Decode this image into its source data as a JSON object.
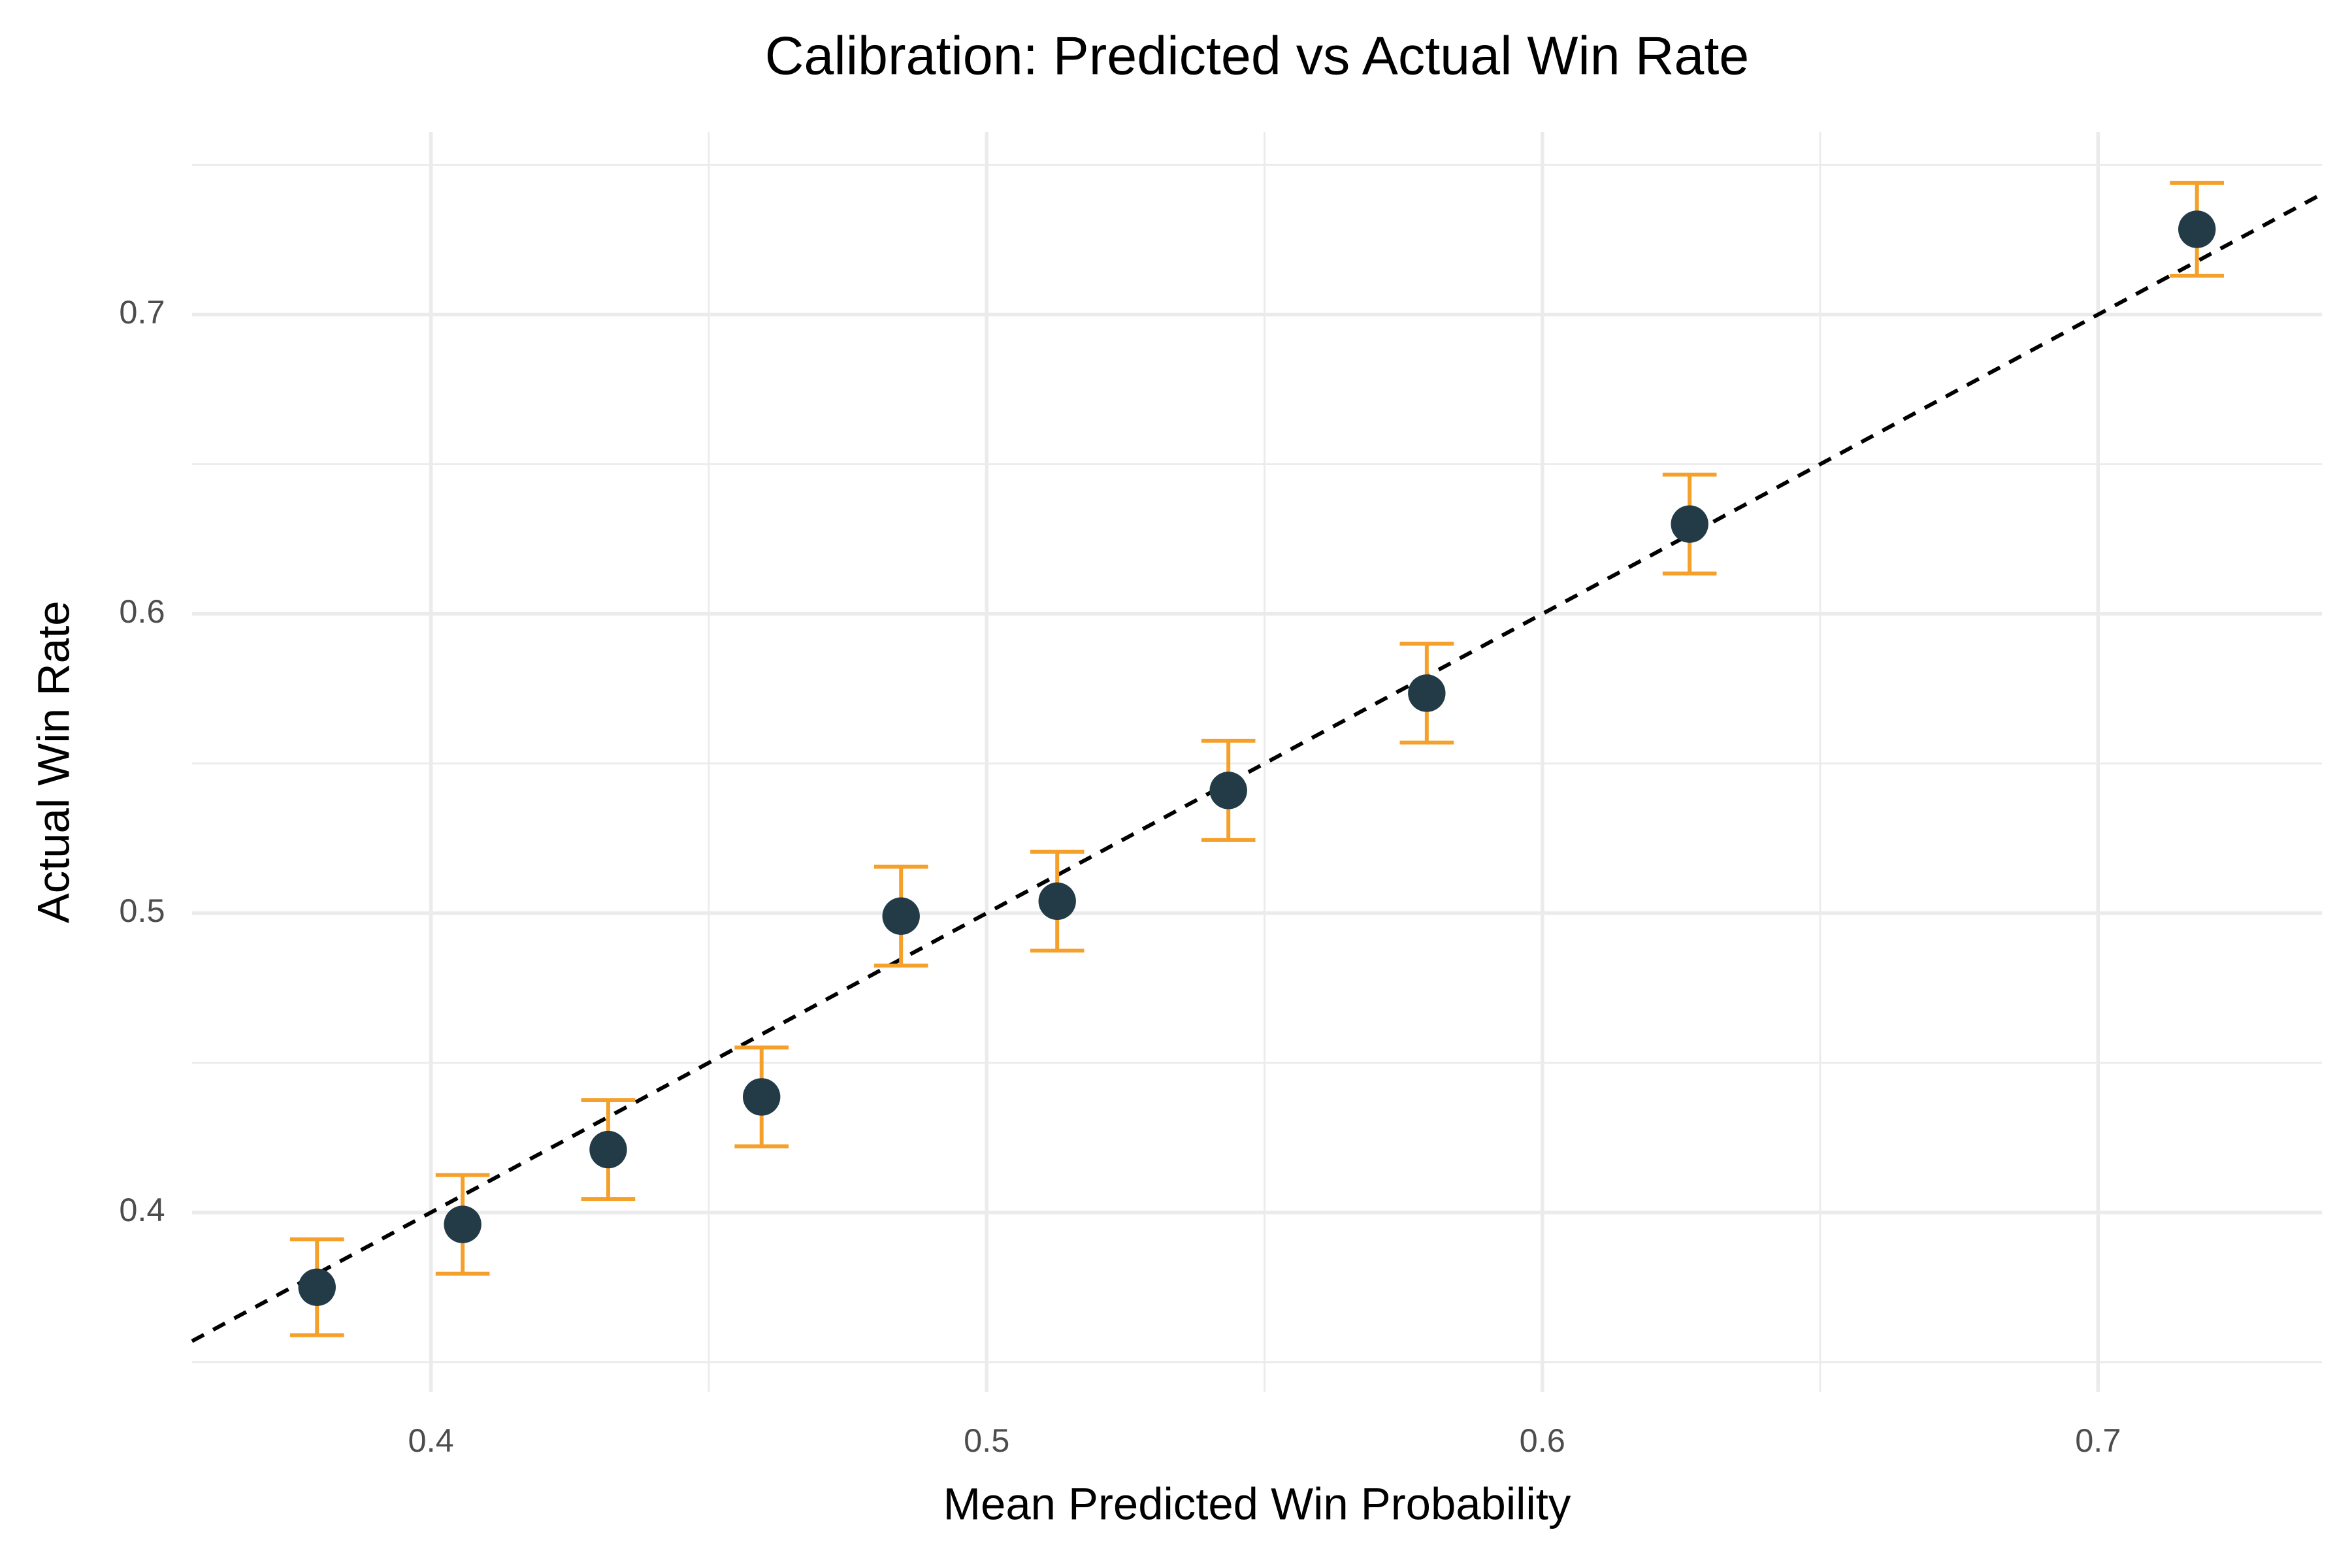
{
  "chart_data": {
    "type": "scatter",
    "title": "Calibration: Predicted vs Actual Win Rate",
    "x_label": "Mean Predicted Win Probability",
    "y_label": "Actual Win Rate",
    "x": [
      0.3795,
      0.4057,
      0.4319,
      0.4595,
      0.4846,
      0.5127,
      0.5435,
      0.5792,
      0.6265,
      0.7178
    ],
    "values": [
      0.375,
      0.396,
      0.421,
      0.4386,
      0.499,
      0.504,
      0.541,
      0.5735,
      0.63,
      0.7285
    ],
    "errors": [
      0.016,
      0.0165,
      0.0165,
      0.0165,
      0.0165,
      0.0165,
      0.0166,
      0.0165,
      0.0165,
      0.0155
    ],
    "color": "#233b47",
    "error_color": "#f5a02a",
    "diagonal": true,
    "xlim": [
      0.357,
      0.7403
    ],
    "ylim": [
      0.34,
      0.761
    ],
    "xticks": [
      0.4,
      0.5,
      0.6,
      0.7
    ],
    "yticks": [
      0.4,
      0.5,
      0.6,
      0.7
    ],
    "xminor": [
      0.45,
      0.55,
      0.65
    ],
    "yminor": [
      0.35,
      0.45,
      0.55,
      0.65,
      0.75
    ],
    "grid": true
  }
}
